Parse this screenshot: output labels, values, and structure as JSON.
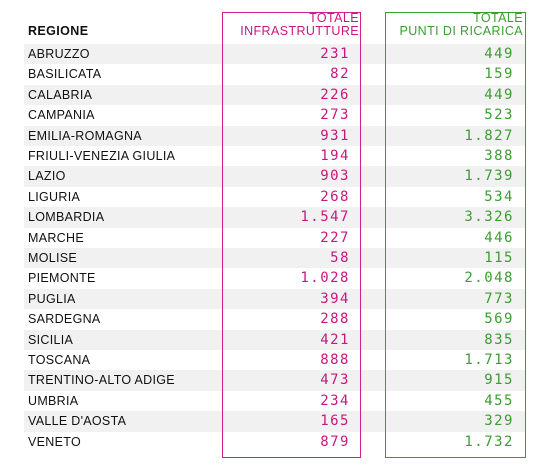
{
  "header": {
    "region": "REGIONE",
    "infrastrutture": [
      "TOTALE",
      "INFRASTRUTTURE"
    ],
    "punti": [
      "TOTALE",
      "PUNTI DI RICARICA"
    ]
  },
  "table": {
    "rows": [
      [
        "ABRUZZO",
        "231",
        "449"
      ],
      [
        "BASILICATA",
        "82",
        "159"
      ],
      [
        "CALABRIA",
        "226",
        "449"
      ],
      [
        "CAMPANIA",
        "273",
        "523"
      ],
      [
        "EMILIA-ROMAGNA",
        "931",
        "1.827"
      ],
      [
        "FRIULI-VENEZIA GIULIA",
        "194",
        "388"
      ],
      [
        "LAZIO",
        "903",
        "1.739"
      ],
      [
        "LIGURIA",
        "268",
        "534"
      ],
      [
        "LOMBARDIA",
        "1.547",
        "3.326"
      ],
      [
        "MARCHE",
        "227",
        "446"
      ],
      [
        "MOLISE",
        "58",
        "115"
      ],
      [
        "PIEMONTE",
        "1.028",
        "2.048"
      ],
      [
        "PUGLIA",
        "394",
        "773"
      ],
      [
        "SARDEGNA",
        "288",
        "569"
      ],
      [
        "SICILIA",
        "421",
        "835"
      ],
      [
        "TOSCANA",
        "888",
        "1.713"
      ],
      [
        "TRENTINO-ALTO ADIGE",
        "473",
        "915"
      ],
      [
        "UMBRIA",
        "234",
        "455"
      ],
      [
        "VALLE D'AOSTA",
        "165",
        "329"
      ],
      [
        "VENETO",
        "879",
        "1.732"
      ]
    ]
  }
}
